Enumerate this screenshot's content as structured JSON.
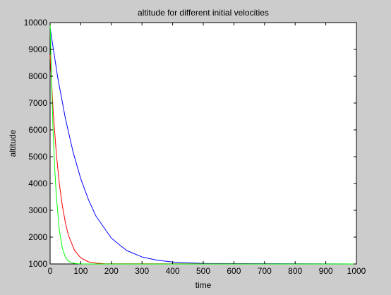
{
  "chart_data": {
    "type": "line",
    "title": "altitude for different initial velocities",
    "xlabel": "time",
    "ylabel": "altitude",
    "xlim": [
      0,
      1000
    ],
    "ylim": [
      1000,
      10000
    ],
    "xticks": [
      "0",
      "100",
      "200",
      "300",
      "400",
      "500",
      "600",
      "700",
      "800",
      "900",
      "1000"
    ],
    "yticks": [
      "1000",
      "2000",
      "3000",
      "4000",
      "5000",
      "6000",
      "7000",
      "8000",
      "9000",
      "10000"
    ],
    "grid": false,
    "legend": "none",
    "series": [
      {
        "color": "#0000ff",
        "x": [
          0,
          25,
          50,
          75,
          100,
          125,
          150,
          200,
          250,
          300,
          350,
          400,
          450,
          500,
          520
        ],
        "y": [
          9800,
          7950,
          6420,
          5180,
          4180,
          3400,
          2780,
          1960,
          1500,
          1260,
          1140,
          1070,
          1040,
          1020,
          1015
        ]
      },
      {
        "color": "#ff0000",
        "x": [
          0,
          10,
          20,
          30,
          40,
          50,
          60,
          80,
          100,
          125,
          150,
          175
        ],
        "y": [
          8800,
          6700,
          5150,
          4000,
          3160,
          2530,
          2060,
          1500,
          1230,
          1080,
          1030,
          1010
        ]
      },
      {
        "color": "#00ff00",
        "x": [
          0,
          5,
          10,
          15,
          20,
          30,
          40,
          50,
          60,
          75,
          90,
          110
        ],
        "y": [
          10000,
          7650,
          5900,
          4570,
          3580,
          2280,
          1580,
          1250,
          1100,
          1030,
          1010,
          1000
        ]
      }
    ]
  }
}
